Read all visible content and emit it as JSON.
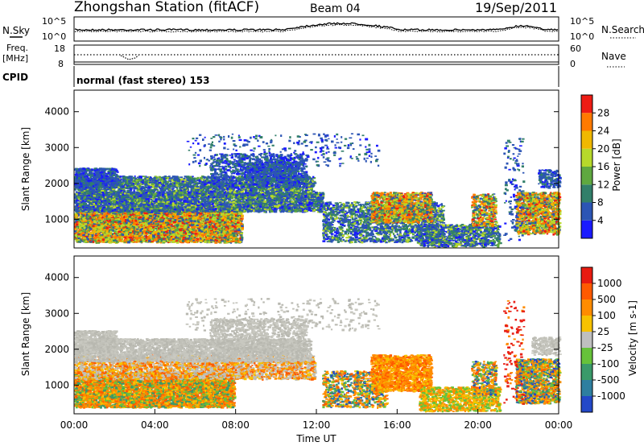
{
  "header": {
    "station": "Zhongshan Station (fitACF)",
    "beam": "Beam 04",
    "date": "19/Sep/2011"
  },
  "panels": {
    "nsky_label": "N.Sky",
    "nsearch_label": "N.Search",
    "nsky_ticks": [
      "10^5",
      "10^0"
    ],
    "nsearch_ticks": [
      "10^5",
      "10^0"
    ],
    "freq_label": "Freq.",
    "freq_unit": "[MHz]",
    "freq_ticks": [
      "18",
      "8"
    ],
    "nave_label": "Nave",
    "nave_ticks": [
      "60",
      "0"
    ],
    "cpid_label": "CPID",
    "cpid_text": "normal (fast stereo) 153"
  },
  "chart_data": [
    {
      "type": "heatmap",
      "name": "power-panel",
      "ylabel": "Slant Range [km]",
      "xlabel": "",
      "ylim": [
        200,
        4600
      ],
      "yticks": [
        "1000",
        "2000",
        "3000",
        "4000"
      ],
      "colorbar_label": "Power [dB]",
      "colorbar_ticks": [
        "4",
        "8",
        "12",
        "16",
        "20",
        "24",
        "28"
      ],
      "colorbar_colors": [
        "#1a1aff",
        "#2c55b5",
        "#327f6a",
        "#5fa840",
        "#b7d92b",
        "#f0b800",
        "#ff7a00",
        "#ee1c14"
      ]
    },
    {
      "type": "heatmap",
      "name": "velocity-panel",
      "ylabel": "Slant Range [km]",
      "xlabel": "Time UT",
      "ylim": [
        200,
        4600
      ],
      "yticks": [
        "1000",
        "2000",
        "3000",
        "4000"
      ],
      "xticks": [
        "00:00",
        "04:00",
        "08:00",
        "12:00",
        "16:00",
        "20:00",
        "00:00"
      ],
      "colorbar_label": "Velocity [m s-1]",
      "colorbar_ticks": [
        "1000",
        "500",
        "100",
        "25",
        "-25",
        "-100",
        "-500",
        "-1000"
      ],
      "colorbar_colors": [
        "#2348c8",
        "#2e7fa0",
        "#3a9a6a",
        "#66c23a",
        "#bfbfbf",
        "#f7c200",
        "#ff8c00",
        "#ff5a00",
        "#e81b10"
      ]
    }
  ],
  "colors": {
    "scatter_blue": "#2449b0",
    "scatter_green": "#4f9a5a",
    "scatter_orange": "#ff7f0e",
    "scatter_red": "#e8231a",
    "ground_grey": "#c0c0b8"
  }
}
